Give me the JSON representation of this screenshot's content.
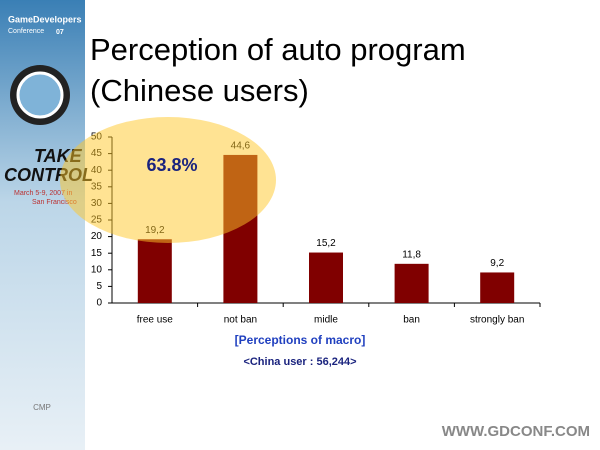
{
  "slide": {
    "event": "GameDevelopers",
    "event_sub": "Conference",
    "year": "07",
    "tagline_1": "TAKE",
    "tagline_2": "CONTROL",
    "dates": "March 5-9, 2007 in",
    "city": "San Francisco",
    "publisher": "CMP",
    "url": "WWW.GDCONF.COM"
  },
  "chart_data": {
    "type": "bar",
    "title": "Perception of auto program (Chinese users)",
    "categories": [
      "free use",
      "not ban",
      "midle",
      "ban",
      "strongly ban"
    ],
    "values": [
      19.2,
      44.6,
      15.2,
      11.8,
      9.2
    ],
    "value_labels": [
      "19,2",
      "44,6",
      "15,2",
      "11,8",
      "9,2"
    ],
    "color": "#800000",
    "ylim": [
      0,
      50
    ],
    "yticks": [
      0,
      5,
      10,
      15,
      20,
      25,
      30,
      35,
      40,
      45,
      50
    ],
    "annotation": "63.8%",
    "xlabel": "[Perceptions of macro]",
    "note": "<China user : 56,244>"
  }
}
